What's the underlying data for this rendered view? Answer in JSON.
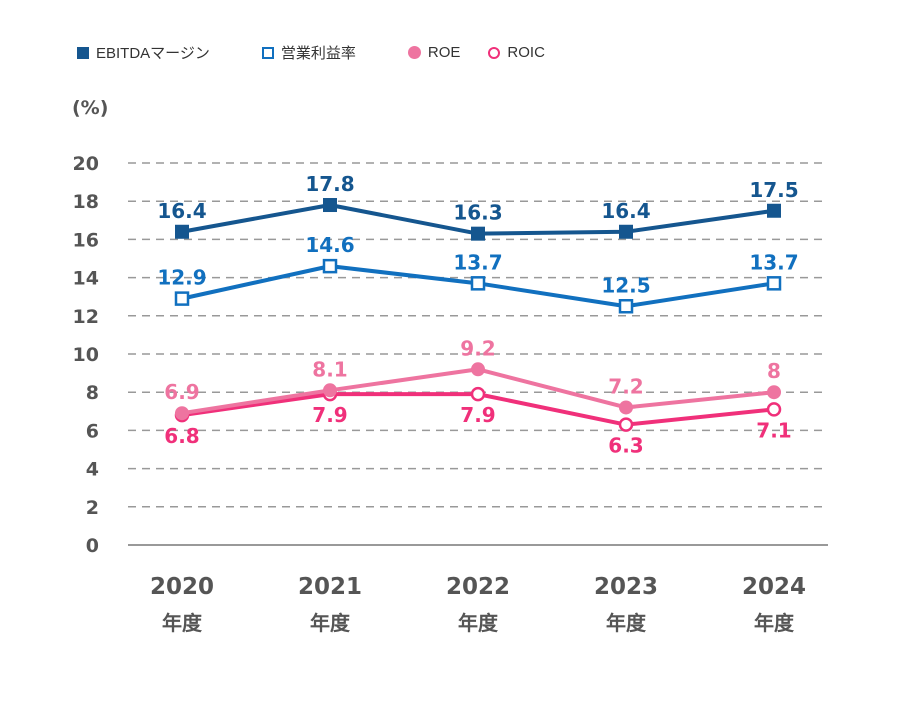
{
  "chart_data": {
    "type": "line",
    "title": "",
    "ylabel": "(%)",
    "xlabel": "",
    "ylim": [
      0,
      20
    ],
    "yticks": [
      0,
      2,
      4,
      6,
      8,
      10,
      12,
      14,
      16,
      18,
      20
    ],
    "grid": true,
    "legend_position": "top-left",
    "categories": [
      "2020",
      "2021",
      "2022",
      "2023",
      "2024"
    ],
    "category_suffix": "年度",
    "series": [
      {
        "name": "EBITDAマージン",
        "marker": "square-filled",
        "color": "#15568f",
        "values": [
          16.4,
          17.8,
          16.3,
          16.4,
          17.5
        ],
        "label_position": "above"
      },
      {
        "name": "営業利益率",
        "marker": "square-open",
        "color": "#1170bf",
        "values": [
          12.9,
          14.6,
          13.7,
          12.5,
          13.7
        ],
        "label_position": "above"
      },
      {
        "name": "ROE",
        "marker": "circle-filled",
        "color": "#ee74a0",
        "values": [
          6.9,
          8.1,
          9.2,
          7.2,
          8
        ],
        "labels": [
          "6.9",
          "8.1",
          "9.2",
          "7.2",
          "8"
        ],
        "label_position": "above"
      },
      {
        "name": "ROIC",
        "marker": "circle-open",
        "color": "#f0307a",
        "values": [
          6.8,
          7.9,
          7.9,
          6.3,
          7.1
        ],
        "label_position": "below"
      }
    ]
  }
}
